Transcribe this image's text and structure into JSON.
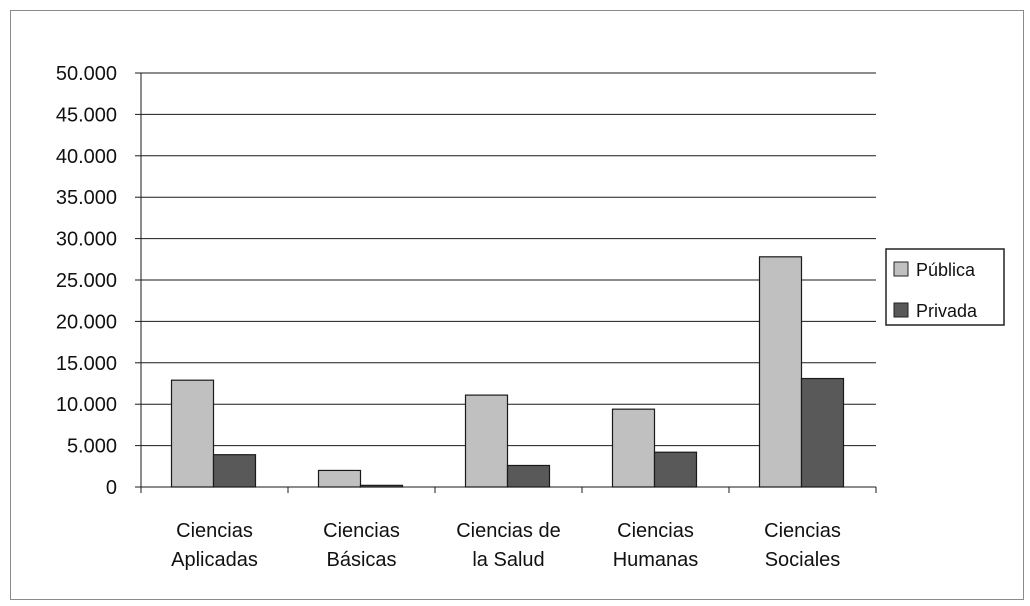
{
  "chart_data": {
    "type": "bar",
    "title": "",
    "xlabel": "",
    "ylabel": "",
    "ylim": [
      0,
      50000
    ],
    "yticks": [
      0,
      5000,
      10000,
      15000,
      20000,
      25000,
      30000,
      35000,
      40000,
      45000,
      50000
    ],
    "ytick_labels": [
      "0",
      "5.000",
      "10.000",
      "15.000",
      "20.000",
      "25.000",
      "30.000",
      "35.000",
      "40.000",
      "45.000",
      "50.000"
    ],
    "grid": true,
    "legend_position": "right",
    "categories": [
      [
        "Ciencias",
        "Aplicadas"
      ],
      [
        "Ciencias",
        "Básicas"
      ],
      [
        "Ciencias de",
        "la Salud"
      ],
      [
        "Ciencias",
        "Humanas"
      ],
      [
        "Ciencias",
        "Sociales"
      ]
    ],
    "series": [
      {
        "name": "Pública",
        "color": "#c0c0c0",
        "values": [
          12900,
          2000,
          11100,
          9400,
          27800
        ]
      },
      {
        "name": "Privada",
        "color": "#595959",
        "values": [
          3900,
          200,
          2600,
          4200,
          13100
        ]
      }
    ]
  }
}
